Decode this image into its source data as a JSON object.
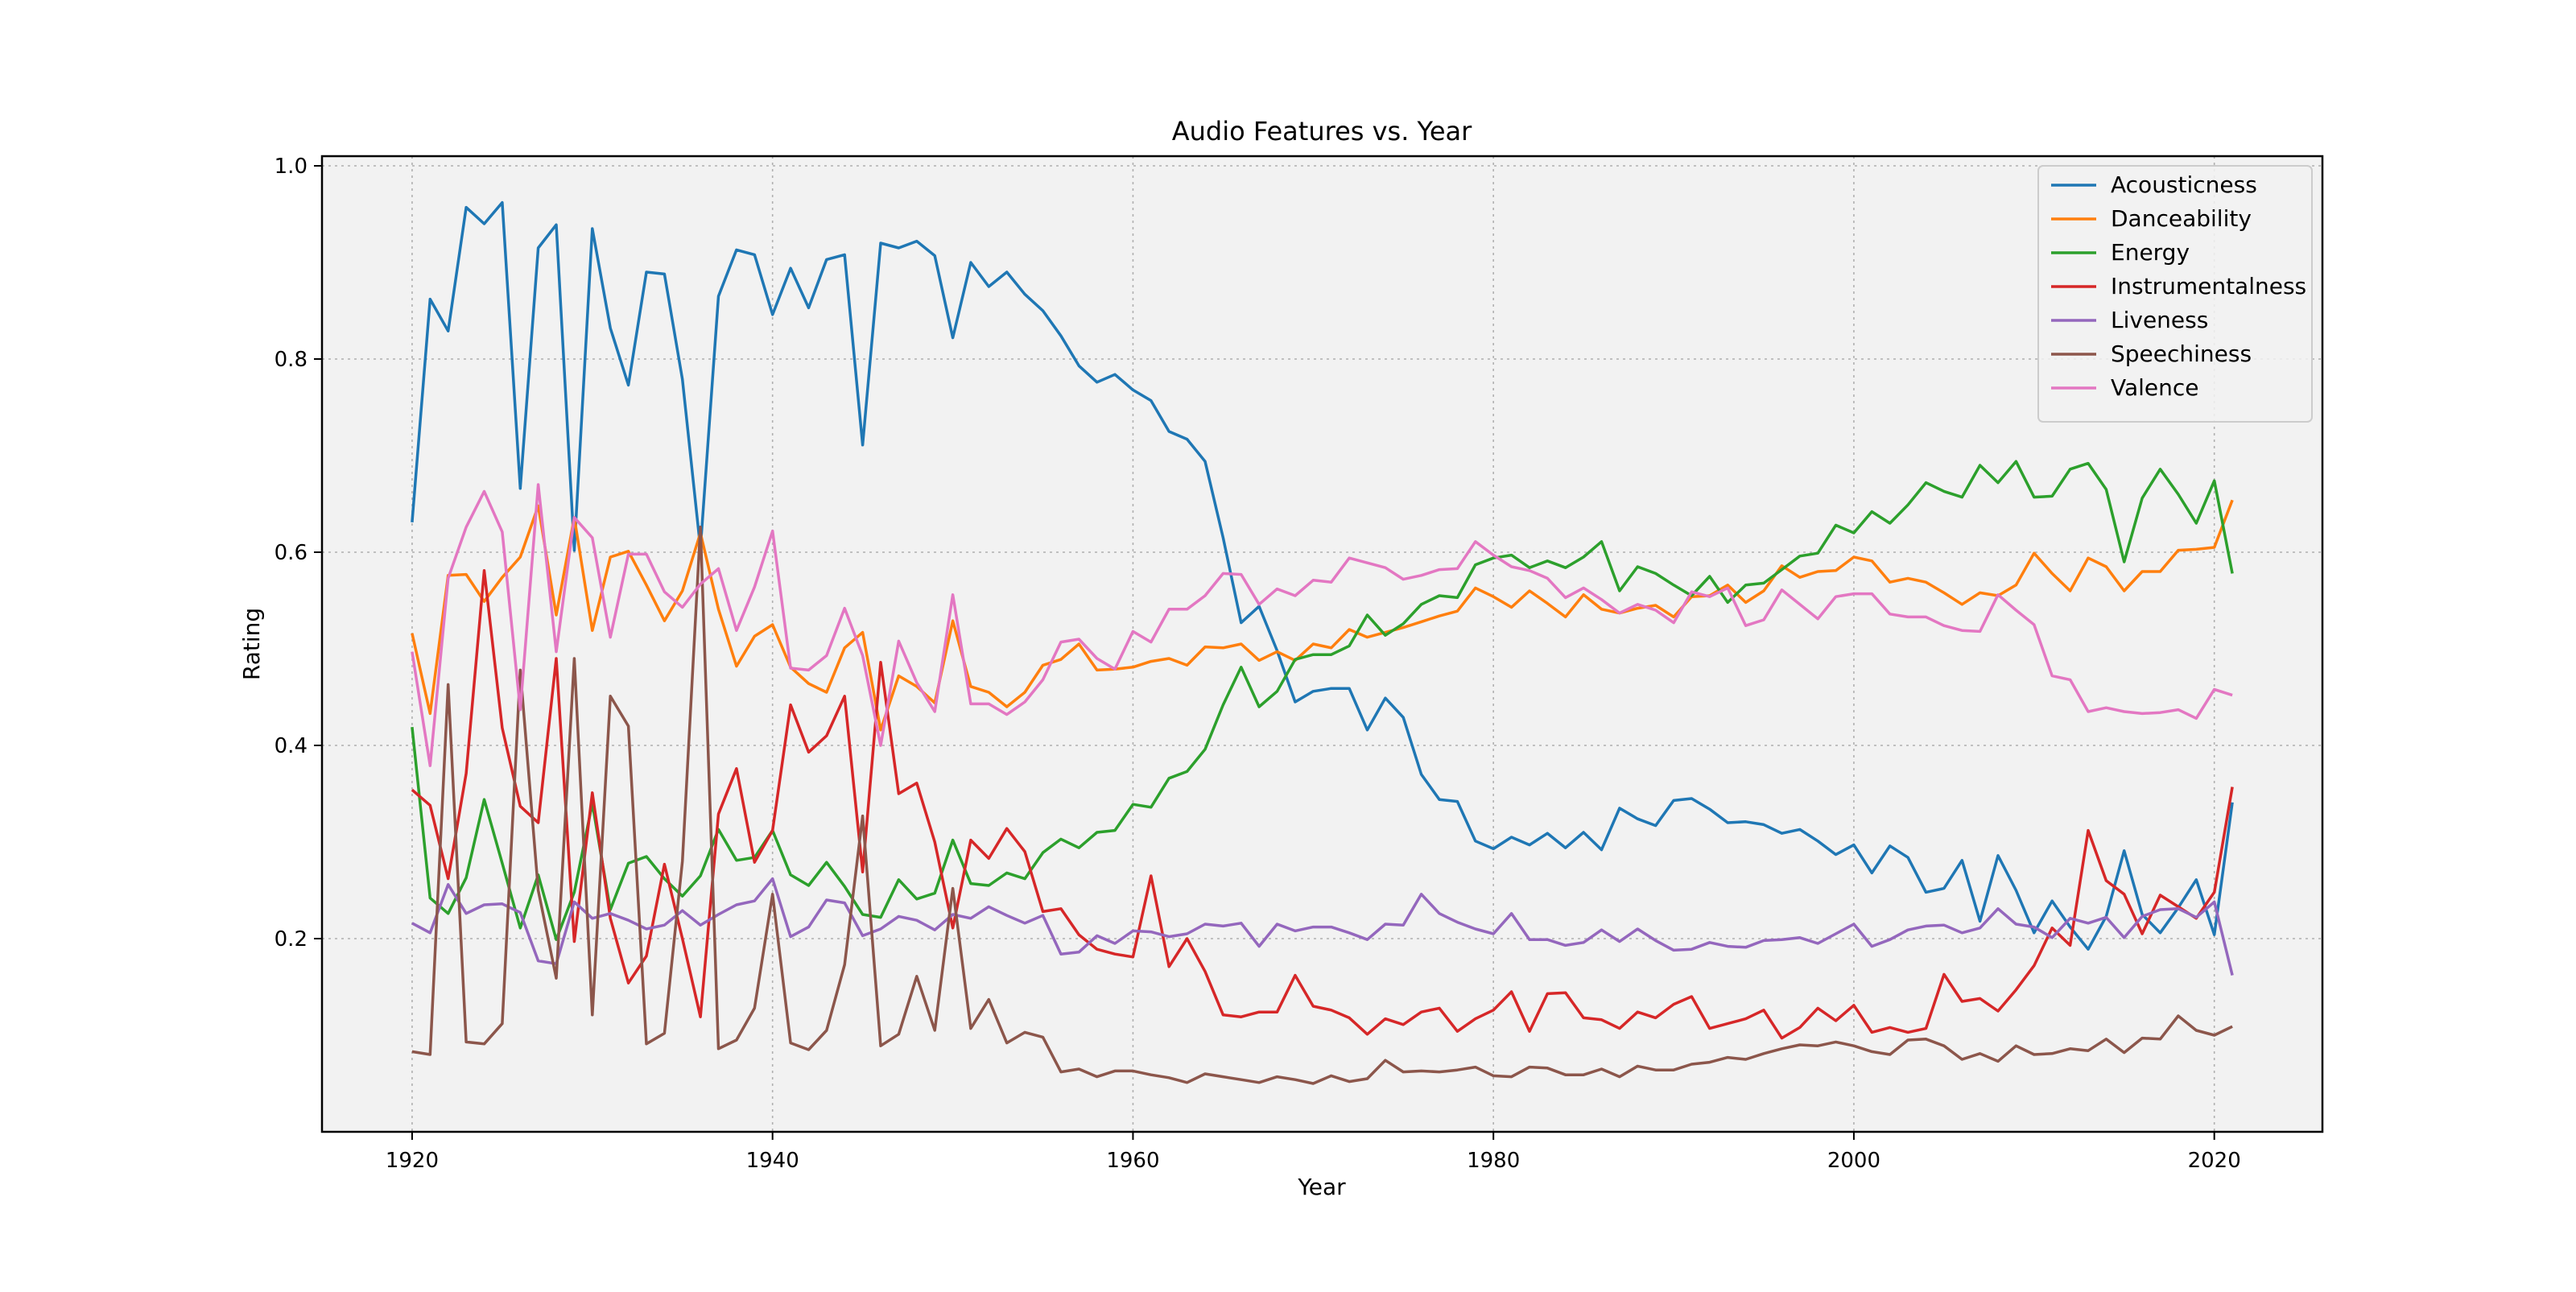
{
  "chart_data": {
    "type": "line",
    "title": "Audio Features vs. Year",
    "xlabel": "Year",
    "ylabel": "Rating",
    "xlim": [
      1915,
      2026
    ],
    "ylim": [
      0.0,
      1.01
    ],
    "x_ticks": [
      "1920",
      "1940",
      "1960",
      "1980",
      "2000",
      "2020"
    ],
    "y_ticks": [
      "0.2",
      "0.4",
      "0.6",
      "0.8",
      "1.0"
    ],
    "grid": true,
    "legend_position": "top-right",
    "x_start": 1920,
    "series": [
      {
        "name": "Acousticness",
        "color": "#1f77b4",
        "values": [
          0.631,
          0.862,
          0.829,
          0.957,
          0.94,
          0.962,
          0.666,
          0.915,
          0.939,
          0.602,
          0.935,
          0.832,
          0.773,
          0.89,
          0.888,
          0.779,
          0.604,
          0.865,
          0.913,
          0.908,
          0.846,
          0.894,
          0.853,
          0.903,
          0.908,
          0.711,
          0.92,
          0.915,
          0.922,
          0.907,
          0.822,
          0.9,
          0.875,
          0.89,
          0.867,
          0.85,
          0.824,
          0.793,
          0.776,
          0.784,
          0.768,
          0.757,
          0.725,
          0.717,
          0.694,
          0.615,
          0.527,
          0.544,
          0.498,
          0.445,
          0.456,
          0.459,
          0.459,
          0.416,
          0.449,
          0.429,
          0.37,
          0.344,
          0.342,
          0.301,
          0.293,
          0.305,
          0.297,
          0.309,
          0.294,
          0.31,
          0.292,
          0.335,
          0.324,
          0.317,
          0.343,
          0.345,
          0.334,
          0.32,
          0.321,
          0.318,
          0.309,
          0.313,
          0.301,
          0.287,
          0.297,
          0.268,
          0.296,
          0.284,
          0.248,
          0.252,
          0.281,
          0.218,
          0.286,
          0.25,
          0.206,
          0.239,
          0.212,
          0.189,
          0.223,
          0.291,
          0.225,
          0.206,
          0.232,
          0.261,
          0.204,
          0.341
        ]
      },
      {
        "name": "Danceability",
        "color": "#ff7f0e",
        "values": [
          0.516,
          0.433,
          0.576,
          0.577,
          0.549,
          0.574,
          0.595,
          0.648,
          0.535,
          0.636,
          0.519,
          0.595,
          0.601,
          0.566,
          0.529,
          0.56,
          0.62,
          0.541,
          0.482,
          0.513,
          0.525,
          0.481,
          0.464,
          0.455,
          0.501,
          0.517,
          0.416,
          0.472,
          0.461,
          0.444,
          0.529,
          0.461,
          0.455,
          0.44,
          0.455,
          0.483,
          0.489,
          0.505,
          0.478,
          0.479,
          0.481,
          0.487,
          0.49,
          0.483,
          0.502,
          0.501,
          0.505,
          0.488,
          0.497,
          0.488,
          0.505,
          0.501,
          0.52,
          0.512,
          0.517,
          0.522,
          0.528,
          0.534,
          0.539,
          0.563,
          0.554,
          0.543,
          0.56,
          0.547,
          0.533,
          0.556,
          0.541,
          0.537,
          0.542,
          0.545,
          0.533,
          0.554,
          0.555,
          0.566,
          0.548,
          0.56,
          0.586,
          0.574,
          0.58,
          0.581,
          0.595,
          0.591,
          0.569,
          0.573,
          0.569,
          0.558,
          0.546,
          0.558,
          0.555,
          0.566,
          0.599,
          0.578,
          0.56,
          0.594,
          0.585,
          0.56,
          0.58,
          0.58,
          0.602,
          0.603,
          0.605,
          0.654
        ]
      },
      {
        "name": "Energy",
        "color": "#2ca02c",
        "values": [
          0.419,
          0.242,
          0.226,
          0.263,
          0.344,
          0.278,
          0.211,
          0.266,
          0.199,
          0.248,
          0.34,
          0.23,
          0.278,
          0.285,
          0.262,
          0.244,
          0.265,
          0.313,
          0.281,
          0.284,
          0.312,
          0.266,
          0.255,
          0.279,
          0.254,
          0.225,
          0.222,
          0.261,
          0.241,
          0.247,
          0.302,
          0.257,
          0.255,
          0.268,
          0.262,
          0.289,
          0.303,
          0.294,
          0.31,
          0.312,
          0.339,
          0.336,
          0.366,
          0.373,
          0.396,
          0.442,
          0.481,
          0.44,
          0.456,
          0.489,
          0.494,
          0.494,
          0.503,
          0.535,
          0.514,
          0.526,
          0.546,
          0.555,
          0.553,
          0.587,
          0.594,
          0.597,
          0.584,
          0.591,
          0.584,
          0.595,
          0.611,
          0.56,
          0.585,
          0.578,
          0.566,
          0.555,
          0.575,
          0.548,
          0.566,
          0.568,
          0.582,
          0.596,
          0.599,
          0.628,
          0.62,
          0.642,
          0.63,
          0.649,
          0.672,
          0.663,
          0.657,
          0.69,
          0.672,
          0.694,
          0.657,
          0.658,
          0.686,
          0.692,
          0.665,
          0.59,
          0.656,
          0.686,
          0.66,
          0.63,
          0.674,
          0.578
        ]
      },
      {
        "name": "Instrumentalness",
        "color": "#d62728",
        "values": [
          0.354,
          0.338,
          0.262,
          0.371,
          0.581,
          0.418,
          0.337,
          0.32,
          0.49,
          0.197,
          0.351,
          0.221,
          0.154,
          0.182,
          0.277,
          0.2,
          0.119,
          0.329,
          0.376,
          0.279,
          0.312,
          0.442,
          0.393,
          0.41,
          0.451,
          0.269,
          0.486,
          0.35,
          0.361,
          0.3,
          0.211,
          0.302,
          0.283,
          0.314,
          0.29,
          0.228,
          0.231,
          0.204,
          0.189,
          0.184,
          0.181,
          0.265,
          0.171,
          0.2,
          0.166,
          0.121,
          0.119,
          0.124,
          0.124,
          0.162,
          0.13,
          0.126,
          0.118,
          0.101,
          0.117,
          0.111,
          0.124,
          0.128,
          0.104,
          0.117,
          0.126,
          0.145,
          0.104,
          0.143,
          0.144,
          0.118,
          0.116,
          0.107,
          0.124,
          0.118,
          0.132,
          0.14,
          0.107,
          0.112,
          0.117,
          0.126,
          0.097,
          0.108,
          0.128,
          0.115,
          0.131,
          0.103,
          0.108,
          0.103,
          0.107,
          0.163,
          0.135,
          0.138,
          0.125,
          0.147,
          0.172,
          0.211,
          0.193,
          0.312,
          0.26,
          0.246,
          0.205,
          0.245,
          0.233,
          0.221,
          0.248,
          0.357
        ]
      },
      {
        "name": "Liveness",
        "color": "#9467bd",
        "values": [
          0.216,
          0.206,
          0.256,
          0.226,
          0.235,
          0.236,
          0.227,
          0.177,
          0.174,
          0.238,
          0.221,
          0.226,
          0.219,
          0.21,
          0.214,
          0.229,
          0.214,
          0.225,
          0.235,
          0.239,
          0.262,
          0.202,
          0.212,
          0.24,
          0.237,
          0.203,
          0.21,
          0.223,
          0.219,
          0.209,
          0.225,
          0.221,
          0.233,
          0.224,
          0.216,
          0.224,
          0.184,
          0.186,
          0.203,
          0.195,
          0.208,
          0.207,
          0.202,
          0.205,
          0.215,
          0.213,
          0.216,
          0.192,
          0.215,
          0.208,
          0.212,
          0.212,
          0.206,
          0.199,
          0.215,
          0.214,
          0.246,
          0.226,
          0.217,
          0.21,
          0.205,
          0.226,
          0.199,
          0.199,
          0.193,
          0.196,
          0.209,
          0.197,
          0.21,
          0.198,
          0.188,
          0.189,
          0.196,
          0.192,
          0.191,
          0.198,
          0.199,
          0.201,
          0.195,
          0.205,
          0.215,
          0.192,
          0.199,
          0.209,
          0.213,
          0.214,
          0.206,
          0.211,
          0.231,
          0.215,
          0.212,
          0.201,
          0.221,
          0.216,
          0.222,
          0.201,
          0.223,
          0.23,
          0.231,
          0.222,
          0.238,
          0.162
        ]
      },
      {
        "name": "Speechiness",
        "color": "#8c564b",
        "values": [
          0.083,
          0.08,
          0.463,
          0.093,
          0.091,
          0.112,
          0.478,
          0.25,
          0.159,
          0.49,
          0.121,
          0.451,
          0.42,
          0.091,
          0.102,
          0.28,
          0.626,
          0.086,
          0.095,
          0.128,
          0.246,
          0.092,
          0.085,
          0.105,
          0.173,
          0.327,
          0.089,
          0.101,
          0.161,
          0.105,
          0.252,
          0.107,
          0.137,
          0.092,
          0.103,
          0.098,
          0.062,
          0.065,
          0.057,
          0.063,
          0.063,
          0.059,
          0.056,
          0.051,
          0.06,
          0.057,
          0.054,
          0.051,
          0.057,
          0.054,
          0.05,
          0.058,
          0.052,
          0.055,
          0.074,
          0.062,
          0.063,
          0.062,
          0.064,
          0.067,
          0.058,
          0.057,
          0.067,
          0.066,
          0.059,
          0.059,
          0.065,
          0.057,
          0.068,
          0.064,
          0.064,
          0.07,
          0.072,
          0.077,
          0.075,
          0.081,
          0.086,
          0.09,
          0.089,
          0.093,
          0.089,
          0.083,
          0.08,
          0.095,
          0.096,
          0.089,
          0.075,
          0.081,
          0.073,
          0.089,
          0.08,
          0.081,
          0.086,
          0.084,
          0.096,
          0.082,
          0.097,
          0.096,
          0.12,
          0.105,
          0.1,
          0.109
        ]
      },
      {
        "name": "Valence",
        "color": "#e377c2",
        "values": [
          0.497,
          0.379,
          0.573,
          0.626,
          0.663,
          0.621,
          0.437,
          0.67,
          0.497,
          0.636,
          0.615,
          0.512,
          0.598,
          0.598,
          0.559,
          0.543,
          0.567,
          0.583,
          0.519,
          0.564,
          0.622,
          0.48,
          0.478,
          0.493,
          0.542,
          0.493,
          0.4,
          0.508,
          0.465,
          0.435,
          0.556,
          0.443,
          0.443,
          0.432,
          0.445,
          0.468,
          0.507,
          0.51,
          0.49,
          0.479,
          0.518,
          0.507,
          0.541,
          0.541,
          0.555,
          0.578,
          0.577,
          0.546,
          0.562,
          0.555,
          0.571,
          0.569,
          0.594,
          0.589,
          0.584,
          0.572,
          0.576,
          0.582,
          0.583,
          0.611,
          0.597,
          0.585,
          0.581,
          0.573,
          0.553,
          0.563,
          0.551,
          0.537,
          0.546,
          0.54,
          0.527,
          0.559,
          0.554,
          0.563,
          0.524,
          0.53,
          0.561,
          0.546,
          0.531,
          0.554,
          0.557,
          0.557,
          0.536,
          0.533,
          0.533,
          0.524,
          0.519,
          0.518,
          0.556,
          0.54,
          0.525,
          0.472,
          0.468,
          0.435,
          0.439,
          0.435,
          0.433,
          0.434,
          0.437,
          0.428,
          0.458,
          0.452
        ]
      }
    ]
  }
}
